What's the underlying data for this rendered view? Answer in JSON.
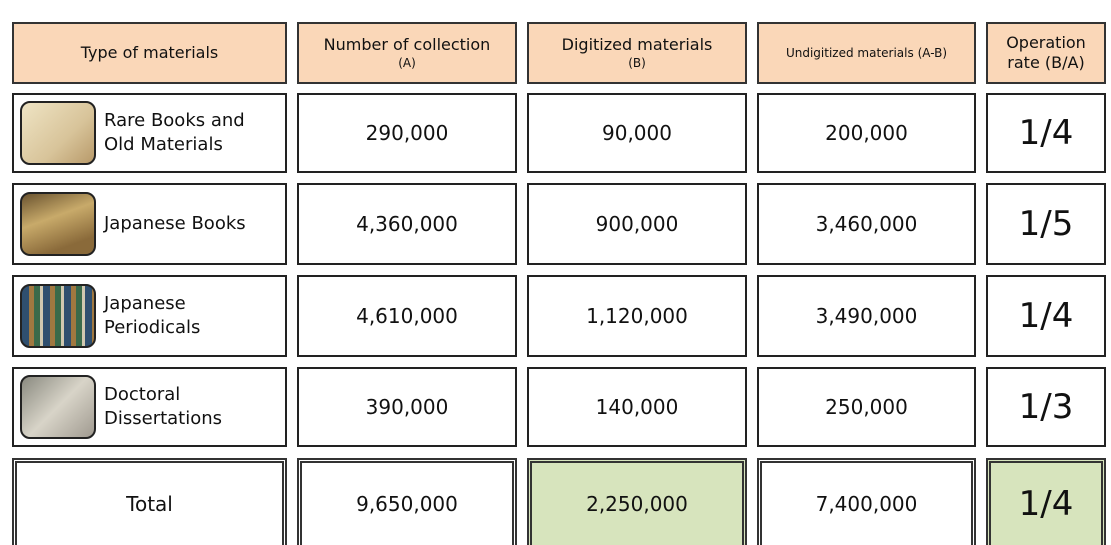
{
  "table": {
    "header": [
      {
        "title": "Type of materials"
      },
      {
        "title": "Number of collection",
        "note": "(A)"
      },
      {
        "title": "Digitized materials",
        "note": "(B)"
      },
      {
        "title": "Undigitized materials (A-B)"
      },
      {
        "title": "Operation rate (B/A)"
      }
    ],
    "rows": [
      [
        "Rare Books and Old Materials",
        "290,000",
        "90,000",
        "200,000",
        "1/4"
      ],
      [
        "Japanese Books",
        "4,360,000",
        "900,000",
        "3,460,000",
        "1/5"
      ],
      [
        "Japanese Periodicals",
        "4,610,000",
        "1,120,000",
        "3,490,000",
        "1/4"
      ],
      [
        "Doctoral Dissertations",
        "390,000",
        "140,000",
        "250,000",
        "1/3"
      ]
    ],
    "total": [
      "Total",
      "9,650,000",
      "2,250,000",
      "7,400,000",
      "1/4"
    ]
  }
}
